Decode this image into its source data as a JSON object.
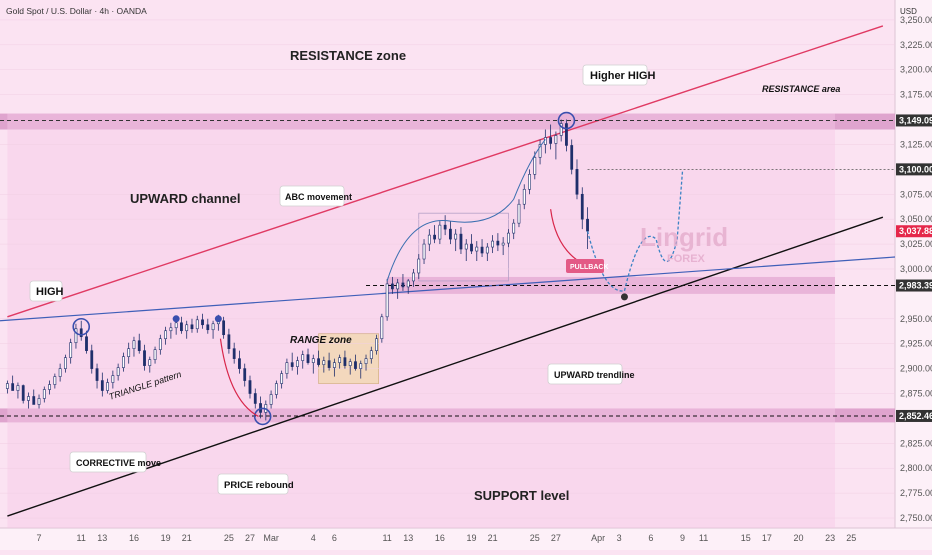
{
  "header": {
    "title": "Gold Spot / U.S. Dollar · 4h · OANDA"
  },
  "chart_data": {
    "type": "candlestick",
    "title": "Gold Spot / U.S. Dollar · 4h · OANDA",
    "currency": "USD",
    "ylim": [
      2740,
      3270
    ],
    "y_ticks": [
      "3,250.000",
      "3,225.000",
      "3,200.000",
      "3,175.000",
      "3,125.000",
      "3,075.000",
      "3,050.000",
      "3,025.000",
      "3,000.000",
      "2,950.000",
      "2,925.000",
      "2,900.000",
      "2,875.000",
      "2,825.000",
      "2,800.000",
      "2,775.000",
      "2,750.000"
    ],
    "y_tick_values": [
      3250,
      3225,
      3200,
      3175,
      3125,
      3075,
      3050,
      3025,
      3000,
      2950,
      2925,
      2900,
      2875,
      2825,
      2800,
      2775,
      2750
    ],
    "x_ticks": [
      "7",
      "11",
      "13",
      "16",
      "19",
      "21",
      "25",
      "27",
      "Mar",
      "4",
      "6",
      "11",
      "13",
      "16",
      "19",
      "21",
      "25",
      "27",
      "Apr",
      "3",
      "6",
      "9",
      "11",
      "15",
      "17",
      "20",
      "23",
      "25"
    ],
    "x_tick_days": [
      7,
      11,
      13,
      16,
      19,
      21,
      25,
      27,
      29,
      33,
      35,
      40,
      42,
      45,
      48,
      50,
      54,
      56,
      60,
      62,
      65,
      68,
      70,
      74,
      76,
      79,
      82,
      84
    ],
    "price_tags": [
      {
        "label": "3,149.090",
        "value": 3149.09,
        "color": "#333333"
      },
      {
        "label": "3,100.000",
        "value": 3100,
        "color": "#333333"
      },
      {
        "label": "3,037.885",
        "value": 3037.885,
        "color": "#e5274a"
      },
      {
        "label": "2,983.397",
        "value": 2983.397,
        "color": "#333333"
      },
      {
        "label": "2,852.460",
        "value": 2852.46,
        "color": "#333333"
      }
    ],
    "zones": {
      "resistance": [
        3140,
        3156
      ],
      "support_band": [
        2975,
        2992
      ],
      "support_level": [
        2846,
        2860
      ]
    },
    "candles": [
      [
        4,
        2880,
        2888,
        2875,
        2885
      ],
      [
        4.5,
        2885,
        2893,
        2880,
        2878
      ],
      [
        5,
        2878,
        2886,
        2870,
        2883
      ],
      [
        5.5,
        2883,
        2884,
        2865,
        2868
      ],
      [
        6,
        2868,
        2876,
        2860,
        2872
      ],
      [
        6.5,
        2872,
        2879,
        2866,
        2864
      ],
      [
        7,
        2864,
        2874,
        2860,
        2870
      ],
      [
        7.5,
        2870,
        2882,
        2866,
        2879
      ],
      [
        8,
        2879,
        2888,
        2874,
        2884
      ],
      [
        8.5,
        2884,
        2895,
        2880,
        2892
      ],
      [
        9,
        2892,
        2905,
        2887,
        2900
      ],
      [
        9.5,
        2900,
        2914,
        2896,
        2911
      ],
      [
        10,
        2911,
        2930,
        2905,
        2926
      ],
      [
        10.5,
        2926,
        2945,
        2920,
        2940
      ],
      [
        11,
        2940,
        2948,
        2928,
        2932
      ],
      [
        11.5,
        2932,
        2938,
        2915,
        2918
      ],
      [
        12,
        2918,
        2924,
        2895,
        2900
      ],
      [
        12.5,
        2900,
        2905,
        2880,
        2888
      ],
      [
        13,
        2888,
        2896,
        2872,
        2878
      ],
      [
        13.5,
        2878,
        2890,
        2875,
        2886
      ],
      [
        14,
        2886,
        2898,
        2880,
        2893
      ],
      [
        14.5,
        2893,
        2905,
        2888,
        2901
      ],
      [
        15,
        2901,
        2916,
        2897,
        2912
      ],
      [
        15.5,
        2912,
        2926,
        2905,
        2920
      ],
      [
        16,
        2920,
        2932,
        2912,
        2928
      ],
      [
        16.5,
        2928,
        2935,
        2915,
        2918
      ],
      [
        17,
        2918,
        2924,
        2898,
        2903
      ],
      [
        17.5,
        2903,
        2912,
        2896,
        2909
      ],
      [
        18,
        2909,
        2922,
        2905,
        2919
      ],
      [
        18.5,
        2919,
        2934,
        2914,
        2930
      ],
      [
        19,
        2930,
        2942,
        2924,
        2938
      ],
      [
        19.5,
        2938,
        2946,
        2930,
        2941
      ],
      [
        20,
        2941,
        2950,
        2934,
        2946
      ],
      [
        20.5,
        2946,
        2952,
        2935,
        2938
      ],
      [
        21,
        2938,
        2948,
        2930,
        2944
      ],
      [
        21.5,
        2944,
        2950,
        2936,
        2940
      ],
      [
        22,
        2940,
        2953,
        2936,
        2949
      ],
      [
        22.5,
        2949,
        2955,
        2940,
        2944
      ],
      [
        23,
        2944,
        2950,
        2935,
        2939
      ],
      [
        23.5,
        2939,
        2948,
        2930,
        2945
      ],
      [
        24,
        2945,
        2954,
        2938,
        2948
      ],
      [
        24.5,
        2948,
        2952,
        2930,
        2934
      ],
      [
        25,
        2934,
        2940,
        2915,
        2920
      ],
      [
        25.5,
        2920,
        2926,
        2905,
        2910
      ],
      [
        26,
        2910,
        2918,
        2895,
        2900
      ],
      [
        26.5,
        2900,
        2905,
        2882,
        2888
      ],
      [
        27,
        2888,
        2893,
        2870,
        2875
      ],
      [
        27.5,
        2875,
        2880,
        2860,
        2865
      ],
      [
        28,
        2865,
        2872,
        2850,
        2856
      ],
      [
        28.5,
        2856,
        2868,
        2848,
        2864
      ],
      [
        29,
        2864,
        2878,
        2860,
        2874
      ],
      [
        29.5,
        2874,
        2888,
        2870,
        2885
      ],
      [
        30,
        2885,
        2898,
        2880,
        2895
      ],
      [
        30.5,
        2895,
        2910,
        2890,
        2906
      ],
      [
        31,
        2906,
        2916,
        2898,
        2902
      ],
      [
        31.5,
        2902,
        2912,
        2894,
        2908
      ],
      [
        32,
        2908,
        2918,
        2900,
        2914
      ],
      [
        32.5,
        2914,
        2920,
        2904,
        2906
      ],
      [
        33,
        2906,
        2914,
        2895,
        2910
      ],
      [
        33.5,
        2910,
        2918,
        2902,
        2904
      ],
      [
        34,
        2904,
        2912,
        2896,
        2908
      ],
      [
        34.5,
        2908,
        2916,
        2898,
        2901
      ],
      [
        35,
        2901,
        2910,
        2892,
        2906
      ],
      [
        35.5,
        2906,
        2914,
        2900,
        2911
      ],
      [
        36,
        2911,
        2918,
        2900,
        2903
      ],
      [
        36.5,
        2903,
        2910,
        2894,
        2907
      ],
      [
        37,
        2907,
        2914,
        2898,
        2900
      ],
      [
        37.5,
        2900,
        2908,
        2890,
        2905
      ],
      [
        38,
        2905,
        2914,
        2898,
        2910
      ],
      [
        38.5,
        2910,
        2922,
        2905,
        2918
      ],
      [
        39,
        2918,
        2934,
        2914,
        2930
      ],
      [
        39.5,
        2930,
        2955,
        2926,
        2952
      ],
      [
        40,
        2952,
        2990,
        2948,
        2985
      ],
      [
        40.5,
        2985,
        2992,
        2975,
        2980
      ],
      [
        41,
        2980,
        2990,
        2970,
        2986
      ],
      [
        41.5,
        2986,
        2995,
        2978,
        2982
      ],
      [
        42,
        2982,
        2990,
        2975,
        2988
      ],
      [
        42.5,
        2988,
        3000,
        2982,
        2996
      ],
      [
        43,
        2996,
        3015,
        2990,
        3010
      ],
      [
        43.5,
        3010,
        3030,
        3005,
        3025
      ],
      [
        44,
        3025,
        3040,
        3018,
        3034
      ],
      [
        44.5,
        3034,
        3044,
        3026,
        3030
      ],
      [
        45,
        3030,
        3048,
        3025,
        3044
      ],
      [
        45.5,
        3044,
        3054,
        3034,
        3040
      ],
      [
        46,
        3040,
        3048,
        3025,
        3030
      ],
      [
        46.5,
        3030,
        3040,
        3018,
        3035
      ],
      [
        47,
        3035,
        3042,
        3015,
        3020
      ],
      [
        47.5,
        3020,
        3030,
        3008,
        3025
      ],
      [
        48,
        3025,
        3035,
        3015,
        3018
      ],
      [
        48.5,
        3018,
        3028,
        3008,
        3022
      ],
      [
        49,
        3022,
        3030,
        3012,
        3016
      ],
      [
        49.5,
        3016,
        3026,
        3008,
        3022
      ],
      [
        50,
        3022,
        3034,
        3016,
        3028
      ],
      [
        50.5,
        3028,
        3036,
        3018,
        3024
      ],
      [
        51,
        3024,
        3032,
        3014,
        3026
      ],
      [
        51.5,
        3026,
        3040,
        3022,
        3036
      ],
      [
        52,
        3036,
        3050,
        3030,
        3046
      ],
      [
        52.5,
        3046,
        3070,
        3042,
        3065
      ],
      [
        53,
        3065,
        3085,
        3060,
        3080
      ],
      [
        53.5,
        3080,
        3100,
        3075,
        3095
      ],
      [
        54,
        3095,
        3118,
        3090,
        3112
      ],
      [
        54.5,
        3112,
        3130,
        3105,
        3125
      ],
      [
        55,
        3125,
        3140,
        3116,
        3132
      ],
      [
        55.5,
        3132,
        3145,
        3120,
        3126
      ],
      [
        56,
        3126,
        3138,
        3110,
        3134
      ],
      [
        56.5,
        3134,
        3150,
        3128,
        3146
      ],
      [
        57,
        3146,
        3150,
        3118,
        3124
      ],
      [
        57.5,
        3124,
        3130,
        3095,
        3100
      ],
      [
        58,
        3100,
        3110,
        3070,
        3075
      ],
      [
        58.5,
        3075,
        3082,
        3040,
        3050
      ],
      [
        59,
        3050,
        3062,
        3020,
        3038
      ]
    ],
    "channel_upper": {
      "from": [
        4,
        2952
      ],
      "to": [
        87,
        3244
      ]
    },
    "channel_lower": {
      "from": [
        4,
        2752
      ],
      "to": [
        87,
        3052
      ]
    },
    "trendline": {
      "from": [
        0,
        2948
      ],
      "to": [
        92,
        3012
      ]
    },
    "resistance_dashed": 3149.09,
    "level_3100_dashed": 3100,
    "level_2983_dashed": 2983.397,
    "level_2852_dashed": 2852.46
  },
  "annotations": {
    "resistance_zone": "RESISTANCE zone",
    "resistance_area": "RESISTANCE area",
    "higher_high": "Higher HIGH",
    "upward_channel": "UPWARD channel",
    "abc_movement": "ABC movement",
    "high": "HIGH",
    "range_zone": "RANGE zone",
    "triangle_pattern": "TRIANGLE pattern",
    "corrective_move": "CORRECTIVE move",
    "price_rebound": "PRICE rebound",
    "support_level": "SUPPORT level",
    "upward_trendline": "UPWARD trendline",
    "pullback": "PULLBACK",
    "watermark": "Lingrid",
    "watermark_sub": "FOREX"
  },
  "colors": {
    "bull": "#1f2f6b",
    "bear": "#1f2f6b",
    "channel_upper": "#e03a63",
    "channel_lower": "#111111",
    "trendline": "#3f5fb8",
    "zone": "#d68fc2",
    "projection": "#3b82c4",
    "arrow_red": "#d8264a"
  }
}
